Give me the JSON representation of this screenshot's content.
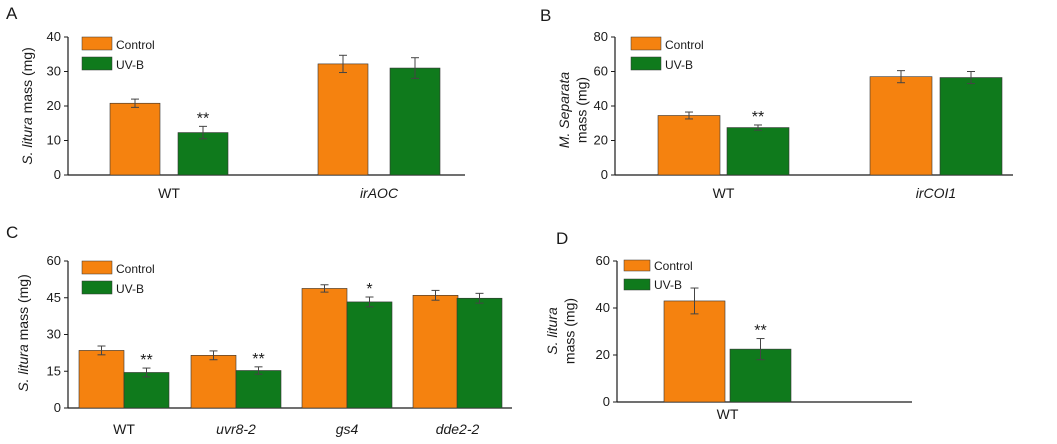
{
  "colors": {
    "control": "#f5820f",
    "uvb": "#0f7a1c",
    "axis": "#1a1a1a",
    "error_bar": "#444444"
  },
  "chart_data": [
    {
      "type": "bar",
      "panel": "A",
      "ylabel": {
        "italic": "S. litura",
        "normal": " mass (mg)"
      },
      "ylim": [
        0,
        40
      ],
      "yticks": [
        0,
        10,
        20,
        30,
        40
      ],
      "categories": [
        "WT",
        "irAOC"
      ],
      "category_italic": [
        false,
        true
      ],
      "series": [
        {
          "name": "Control",
          "values": [
            20.8,
            32.2
          ],
          "errors": [
            1.2,
            2.5
          ]
        },
        {
          "name": "UV-B",
          "values": [
            12.3,
            31.0
          ],
          "errors": [
            1.8,
            3.0
          ]
        }
      ],
      "annotations": [
        {
          "category": 0,
          "series": 1,
          "text": "**"
        }
      ],
      "legend": "top-left",
      "grid": false
    },
    {
      "type": "bar",
      "panel": "B",
      "ylabel": {
        "italic": "M. Separata",
        "normal": "mass (mg)"
      },
      "ylim": [
        0,
        80
      ],
      "yticks": [
        0,
        20,
        40,
        60,
        80
      ],
      "categories": [
        "WT",
        "irCOI1"
      ],
      "category_italic": [
        false,
        true
      ],
      "series": [
        {
          "name": "Control",
          "values": [
            34.5,
            57.0
          ],
          "errors": [
            2.0,
            3.5
          ]
        },
        {
          "name": "UV-B",
          "values": [
            27.5,
            56.5
          ],
          "errors": [
            1.5,
            3.5
          ]
        }
      ],
      "annotations": [
        {
          "category": 0,
          "series": 1,
          "text": "**"
        }
      ],
      "legend": "top-left",
      "grid": false
    },
    {
      "type": "bar",
      "panel": "C",
      "ylabel": {
        "italic": "S. litura",
        "normal": " mass (mg)"
      },
      "ylim": [
        0,
        60
      ],
      "yticks": [
        0,
        15,
        30,
        45,
        60
      ],
      "categories": [
        "WT",
        "uvr8-2",
        "gs4",
        "dde2-2"
      ],
      "category_italic": [
        false,
        true,
        true,
        true
      ],
      "series": [
        {
          "name": "Control",
          "values": [
            23.5,
            21.5,
            48.8,
            46.0
          ],
          "errors": [
            1.8,
            1.8,
            1.5,
            2.0
          ]
        },
        {
          "name": "UV-B",
          "values": [
            14.5,
            15.3,
            43.3,
            44.8
          ],
          "errors": [
            1.8,
            1.5,
            2.0,
            2.0
          ]
        }
      ],
      "annotations": [
        {
          "category": 0,
          "series": 1,
          "text": "**"
        },
        {
          "category": 1,
          "series": 1,
          "text": "**"
        },
        {
          "category": 2,
          "series": 1,
          "text": "*"
        }
      ],
      "legend": "top-left",
      "grid": false
    },
    {
      "type": "bar",
      "panel": "D",
      "ylabel": {
        "italic": "S. litura",
        "normal": "mass (mg)"
      },
      "ylim": [
        0,
        60
      ],
      "yticks": [
        0,
        20,
        40,
        60
      ],
      "categories": [
        "WT"
      ],
      "category_italic": [
        false
      ],
      "series": [
        {
          "name": "Control",
          "values": [
            43.0
          ],
          "errors": [
            5.5
          ]
        },
        {
          "name": "UV-B",
          "values": [
            22.5
          ],
          "errors": [
            4.5
          ]
        }
      ],
      "annotations": [
        {
          "category": 0,
          "series": 1,
          "text": "**"
        }
      ],
      "legend": "top-left",
      "grid": false
    }
  ]
}
